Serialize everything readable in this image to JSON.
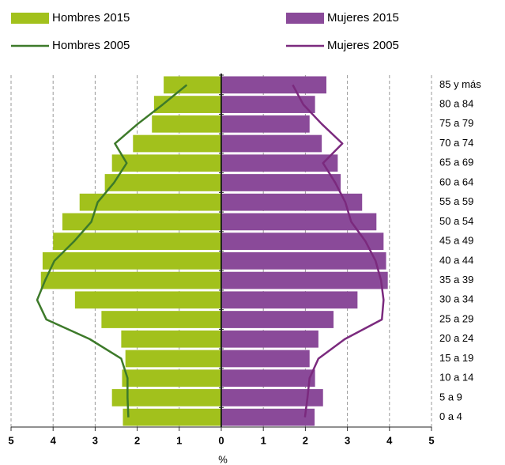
{
  "chart_data": {
    "type": "pyramid",
    "xlabel": "%",
    "categories": [
      "0 a 4",
      "5 a 9",
      "10 a 14",
      "15 a 19",
      "20 a 24",
      "25 a 29",
      "30 a 34",
      "35 a 39",
      "40 a 44",
      "45 a 49",
      "50 a 54",
      "55 a 59",
      "60 a 64",
      "65 a 69",
      "70 a 74",
      "75 a 79",
      "80 a 84",
      "85 y más"
    ],
    "series": [
      {
        "name": "Hombres 2015",
        "kind": "bar",
        "side": "left",
        "color": "#a2c11c",
        "values": [
          2.34,
          2.6,
          2.36,
          2.28,
          2.38,
          2.85,
          3.48,
          4.29,
          4.25,
          4.0,
          3.78,
          3.37,
          2.77,
          2.6,
          2.1,
          1.65,
          1.6,
          1.37
        ]
      },
      {
        "name": "Mujeres 2015",
        "kind": "bar",
        "side": "right",
        "color": "#8a4a99",
        "values": [
          2.22,
          2.42,
          2.23,
          2.1,
          2.31,
          2.67,
          3.24,
          3.96,
          3.92,
          3.86,
          3.69,
          3.35,
          2.84,
          2.77,
          2.39,
          2.1,
          2.23,
          2.5
        ]
      },
      {
        "name": "Hombres 2005",
        "kind": "line",
        "side": "left",
        "color": "#3d7a2a",
        "values": [
          2.21,
          2.23,
          2.23,
          2.38,
          3.13,
          4.16,
          4.38,
          4.19,
          3.97,
          3.5,
          3.09,
          2.94,
          2.55,
          2.25,
          2.53,
          1.99,
          1.39,
          0.82
        ]
      },
      {
        "name": "Mujeres 2005",
        "kind": "line",
        "side": "right",
        "color": "#7b2a7e",
        "values": [
          1.99,
          2.05,
          2.1,
          2.31,
          2.94,
          3.82,
          3.86,
          3.8,
          3.67,
          3.43,
          3.09,
          2.95,
          2.71,
          2.42,
          2.88,
          2.39,
          1.95,
          1.7
        ]
      }
    ],
    "xlim": [
      -5,
      5
    ],
    "xticks": [
      {
        "value": -5,
        "label": "5"
      },
      {
        "value": -4,
        "label": "4"
      },
      {
        "value": -3,
        "label": "3"
      },
      {
        "value": -2,
        "label": "2"
      },
      {
        "value": -1,
        "label": "1"
      },
      0,
      1,
      2,
      3,
      4,
      5
    ],
    "grid": true,
    "legend": "top"
  }
}
